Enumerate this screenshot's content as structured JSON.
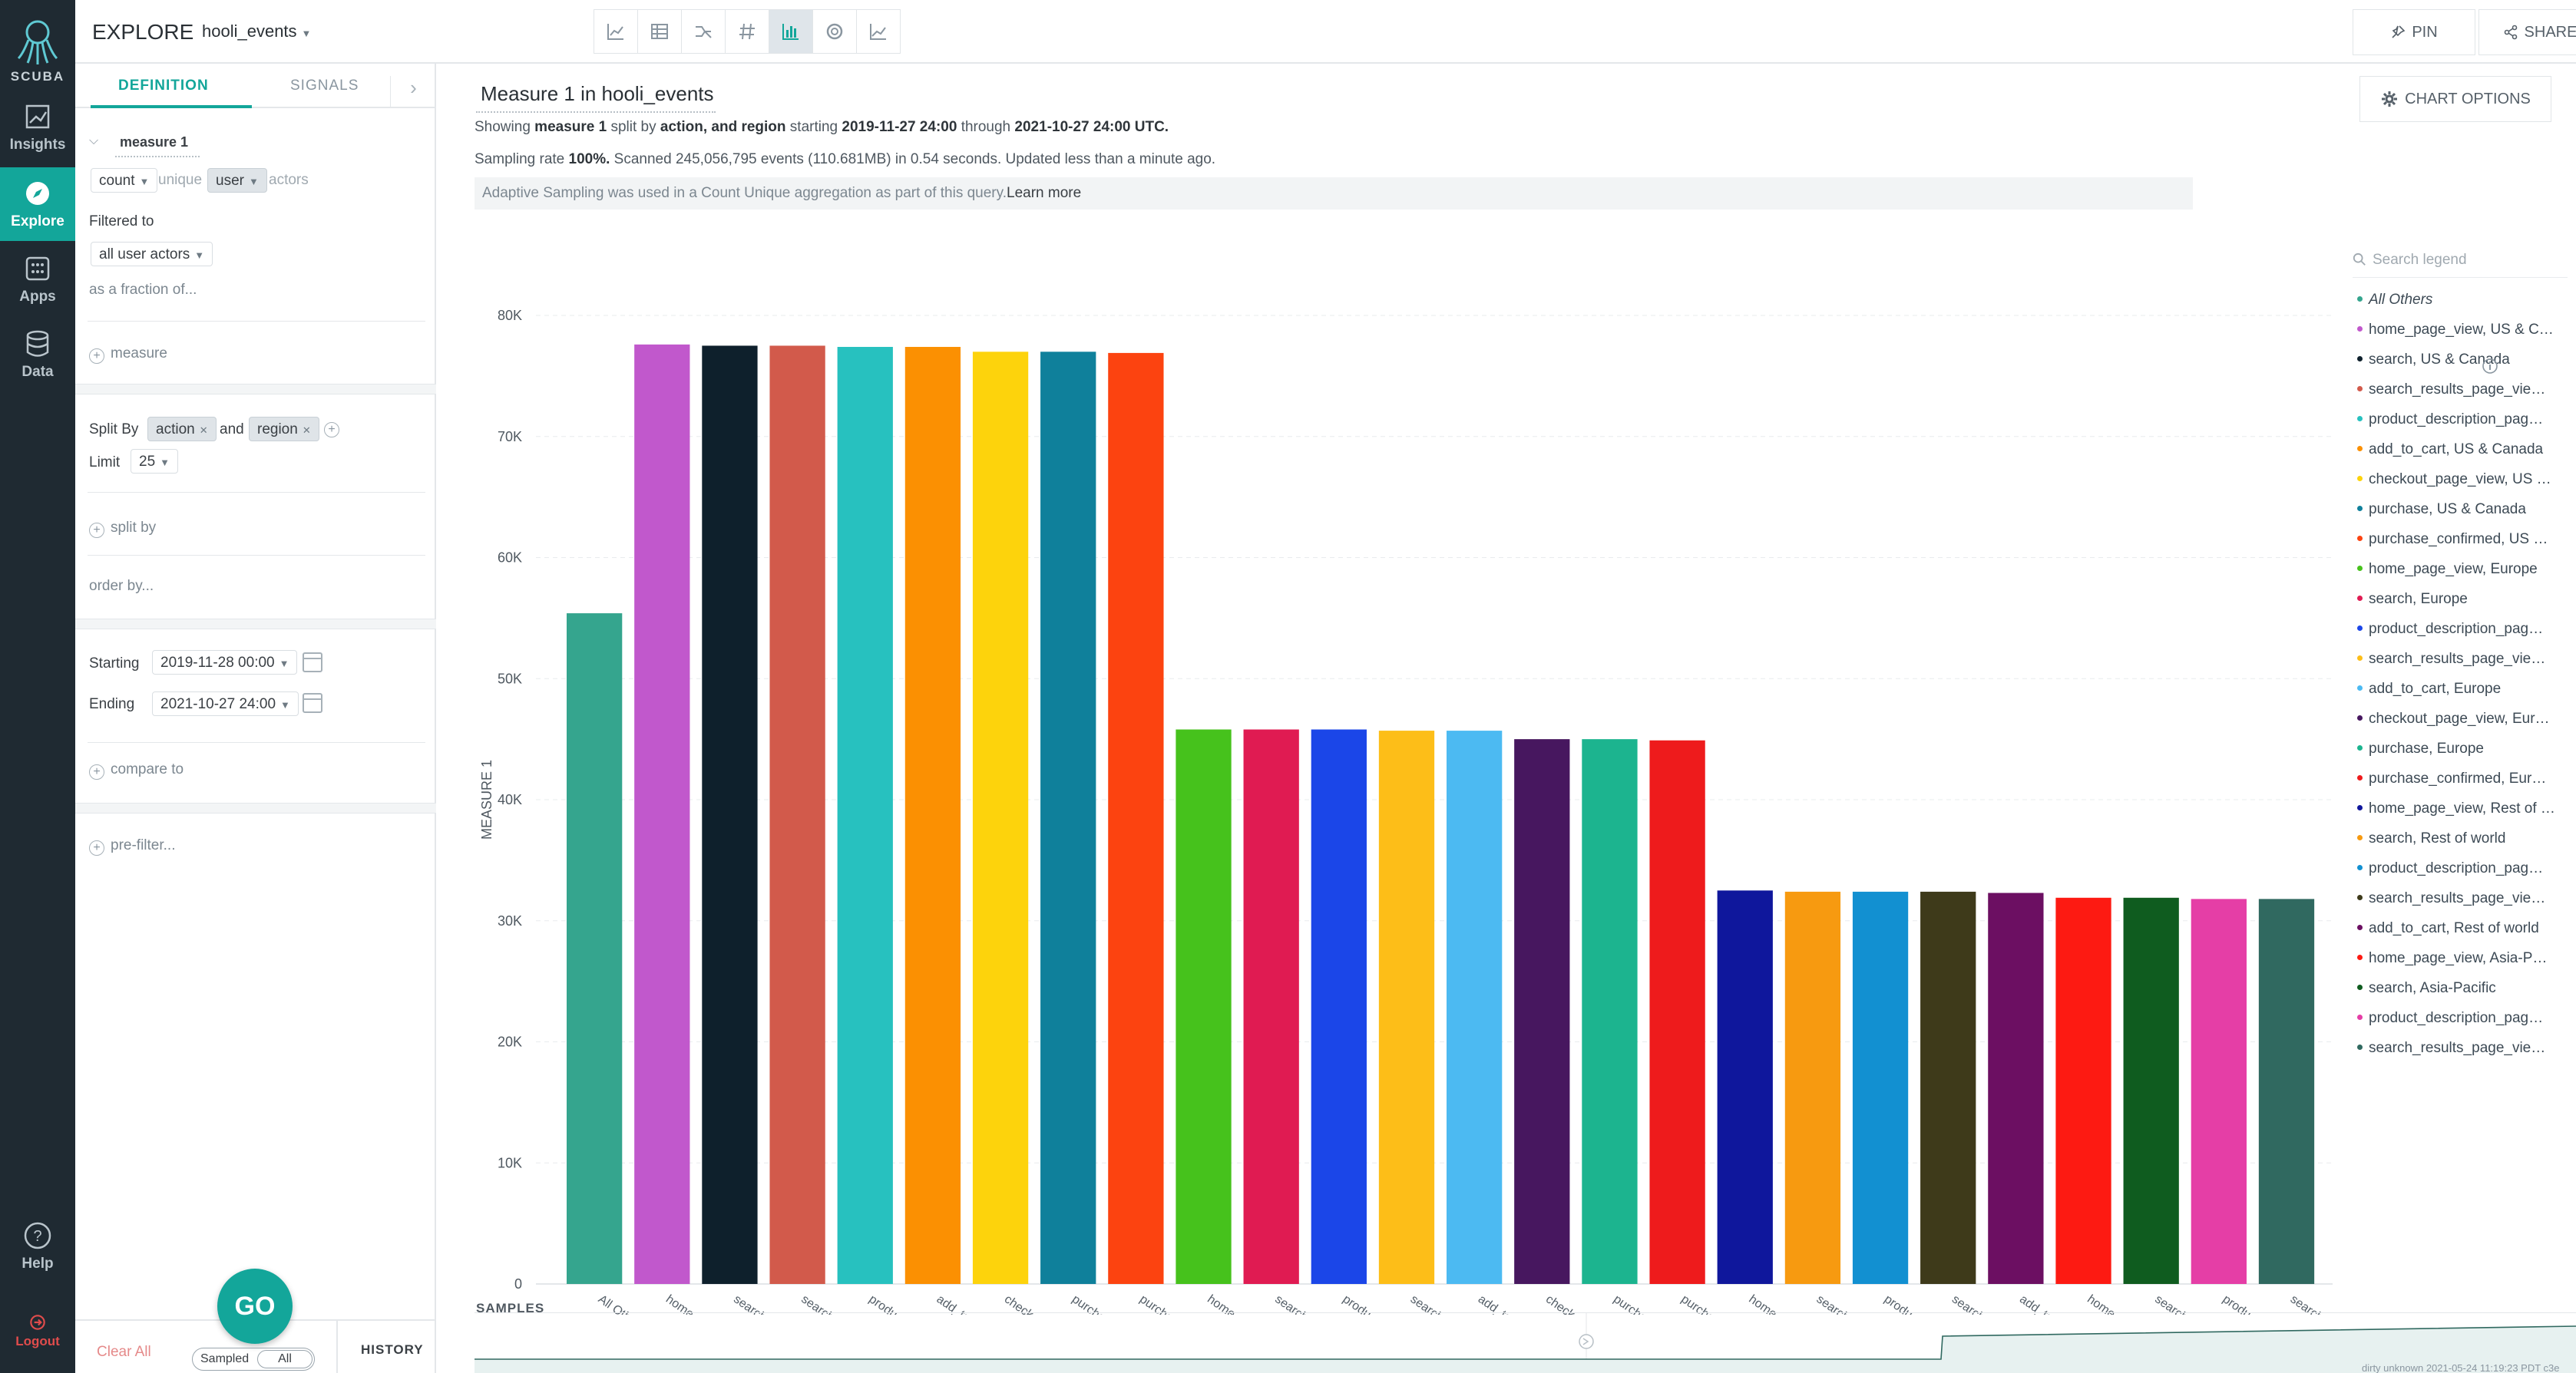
{
  "app": {
    "logo_text": "SCUBA",
    "title": "EXPLORE",
    "dataset": "hooli_events"
  },
  "rail": {
    "items": [
      {
        "label": "Insights",
        "icon": "insights-icon"
      },
      {
        "label": "Explore",
        "icon": "compass-icon"
      },
      {
        "label": "Apps",
        "icon": "apps-grid-icon"
      },
      {
        "label": "Data",
        "icon": "database-icon"
      }
    ],
    "help_label": "Help",
    "logout_label": "Logout"
  },
  "toolbar": {
    "visualizations": [
      "line-chart-icon",
      "table-icon",
      "flow-icon",
      "number-icon",
      "bar-chart-icon",
      "pie-chart-icon",
      "area-chart-icon"
    ],
    "active_visualization": "bar-chart-icon",
    "pin_label": "PIN",
    "share_label": "SHARE"
  },
  "panel": {
    "tab_definition": "DEFINITION",
    "tab_signals": "SIGNALS",
    "measure_name": "measure 1",
    "aggregation": "count",
    "unique_text": "unique",
    "entity": "user",
    "actors_text": "actors",
    "filtered_to_label": "Filtered to",
    "filter_value": "all user actors",
    "fraction_link": "as a fraction of...",
    "add_measure": "measure",
    "split_by_label": "Split By",
    "split_1": "action",
    "and_text": "and",
    "split_2": "region",
    "limit_label": "Limit",
    "limit_value": "25",
    "add_split_by": "split by",
    "order_by": "order by...",
    "starting_label": "Starting",
    "starting_value": "2019-11-28 00:00",
    "ending_label": "Ending",
    "ending_value": "2021-10-27 24:00",
    "compare_to": "compare to",
    "pre_filter": "pre-filter...",
    "clear_all": "Clear All",
    "go_label": "GO",
    "toggle_sampled": "Sampled",
    "toggle_all": "All",
    "history_label": "HISTORY"
  },
  "main": {
    "title": "Measure 1 in hooli_events",
    "summary": {
      "showing": "Showing",
      "measure": "measure 1",
      "split_by": "split by",
      "splits": "action, and region",
      "starting": "starting",
      "start": "2019-11-27 24:00",
      "through": "through",
      "end": "2021-10-27 24:00 UTC."
    },
    "stats": {
      "prefix": "Sampling rate",
      "rate": "100%.",
      "rest": "Scanned 245,056,795 events (110.681MB) in 0.54 seconds. Updated less than a minute ago."
    },
    "banner_text": "Adaptive Sampling was used in a Count Unique aggregation as part of this query.",
    "banner_link": "Learn more",
    "chart_options": "CHART OPTIONS",
    "legend_search_placeholder": "Search legend",
    "samples_label": "SAMPLES",
    "footnote": "dirty unknown 2021-05-24 11:19:23 PDT c3e"
  },
  "chart_data": {
    "type": "bar",
    "ylabel": "MEASURE 1",
    "xlabel": "",
    "ylim": [
      0,
      80000
    ],
    "yticks": [
      "0",
      "10K",
      "20K",
      "30K",
      "40K",
      "50K",
      "60K",
      "70K",
      "80K"
    ],
    "categories": [
      "All Others",
      "home_page_view, US & Canada",
      "search, US & Canada",
      "search_results_page_view, US & Canada",
      "product_description_page_view, US & Canada",
      "add_to_cart, US & Canada",
      "checkout_page_view, US & Canada",
      "purchase, US & Canada",
      "purchase_confirmed, US & Canada",
      "home_page_view, Europe",
      "search, Europe",
      "product_description_page_view, Europe",
      "search_results_page_view, Europe",
      "add_to_cart, Europe",
      "checkout_page_view, Europe",
      "purchase, Europe",
      "purchase_confirmed, Europe",
      "home_page_view, Rest of world",
      "search, Rest of world",
      "product_description_page_view, Rest of world",
      "search_results_page_view, Rest of world",
      "add_to_cart, Rest of world",
      "home_page_view, Asia-Pacific",
      "search, Asia-Pacific",
      "product_description_page_view, Asia-Pacific",
      "search_results_page_view, Asia-Pacific"
    ],
    "x_tick_labels": [
      "All Others",
      "home_page_view, US & Canada",
      "search, US & Canada",
      "search_results_page_view, US & C…",
      "product_description_page_view, …",
      "add_to_cart, US & Canada",
      "checkout_page_view, US & Canada",
      "purchase, US & Canada",
      "purchase_confirmed, US & Canada",
      "home_page_view, Europe",
      "search, Europe",
      "product_description_page_view, …",
      "search_results_page_view, Europe",
      "add_to_cart, Europe",
      "checkout_page_view, Europe",
      "purchase, Europe",
      "purchase_confirmed, Europe",
      "home_page_view, Rest of world",
      "search, Rest of world",
      "product_description_page_view, …",
      "search_results_page_view, Rest…",
      "add_to_cart, Rest of world",
      "home_page_view, Asia-Pacific",
      "search, Asia-Pacific",
      "product_description_page_view, …",
      "search_results_page_view, Asia-…"
    ],
    "values": [
      55400,
      77600,
      77500,
      77500,
      77400,
      77400,
      77000,
      77000,
      76900,
      45800,
      45800,
      45800,
      45700,
      45700,
      45000,
      45000,
      44900,
      32500,
      32400,
      32400,
      32400,
      32300,
      31900,
      31900,
      31800,
      31800
    ],
    "colors": [
      "#35a58e",
      "#c158cc",
      "#0e202c",
      "#d25a4b",
      "#27c1bf",
      "#fb9002",
      "#fdd30c",
      "#0f809b",
      "#fc4310",
      "#46c21c",
      "#e01b52",
      "#1b46e8",
      "#fdbe18",
      "#4cbaf2",
      "#47175f",
      "#1cb48f",
      "#ee1b1c",
      "#0f179c",
      "#f79a10",
      "#1290d1",
      "#3e3a1a",
      "#6c0f62",
      "#fd1a12",
      "#0f5c1f",
      "#e53ea6",
      "#306960"
    ],
    "legend": {
      "placement": "right",
      "items": [
        "All Others",
        "home_page_view, US & C…",
        "search, US & Canada",
        "search_results_page_vie…",
        "product_description_pag…",
        "add_to_cart, US & Canada",
        "checkout_page_view, US …",
        "purchase, US & Canada",
        "purchase_confirmed, US …",
        "home_page_view, Europe",
        "search, Europe",
        "product_description_pag…",
        "search_results_page_vie…",
        "add_to_cart, Europe",
        "checkout_page_view, Eur…",
        "purchase, Europe",
        "purchase_confirmed, Eur…",
        "home_page_view, Rest of …",
        "search, Rest of world",
        "product_description_pag…",
        "search_results_page_vie…",
        "add_to_cart, Rest of world",
        "home_page_view, Asia-P…",
        "search, Asia-Pacific",
        "product_description_pag…",
        "search_results_page_vie…"
      ]
    },
    "grid": true
  }
}
